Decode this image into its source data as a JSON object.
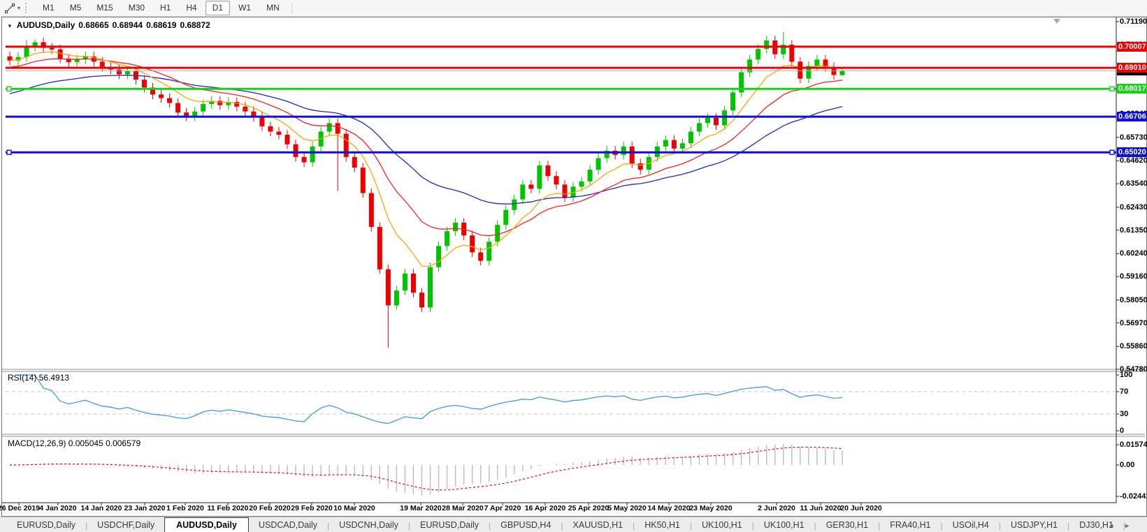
{
  "toolbar": {
    "timeframes": [
      "M1",
      "M5",
      "M15",
      "M30",
      "H1",
      "H4",
      "D1",
      "W1",
      "MN"
    ],
    "active_timeframe": "D1",
    "caret_glyph": "▾"
  },
  "chart_header": {
    "collapse_glyph": "▼",
    "symbol": "AUDUSD,Daily",
    "open": "0.68665",
    "high": "0.68944",
    "low": "0.68619",
    "close": "0.68872"
  },
  "price_axis": {
    "ticks": [
      "0.71190",
      "0.70110",
      "0.69020",
      "0.67920",
      "0.66840",
      "0.65730",
      "0.64620",
      "0.63540",
      "0.62430",
      "0.61350",
      "0.60240",
      "0.59160",
      "0.58050",
      "0.56970",
      "0.55860",
      "0.54780"
    ],
    "badges": [
      {
        "label": "0.70007",
        "value": 0.70007,
        "color": "#f00000",
        "name": "resistance-line-label"
      },
      {
        "label": "0.68872",
        "value": 0.68872,
        "color": "#000000",
        "name": "current-price-label"
      },
      {
        "label": "0.69010",
        "value": 0.6901,
        "color": "#f00000",
        "name": "resistance-line-label"
      },
      {
        "label": "0.68017",
        "value": 0.68017,
        "color": "#17d317",
        "name": "support-line-label"
      },
      {
        "label": "0.66706",
        "value": 0.66706,
        "color": "#0d0de0",
        "name": "support-line-label"
      },
      {
        "label": "0.65020",
        "value": 0.6502,
        "color": "#0d0de0",
        "name": "support-line-label"
      }
    ]
  },
  "rsi": {
    "label": "RSI(14) 56.4913",
    "axis": [
      {
        "label": "100",
        "value": 100
      },
      {
        "label": "70",
        "value": 70
      },
      {
        "label": "30",
        "value": 30
      },
      {
        "label": "0",
        "value": 0
      }
    ],
    "dashed_levels": [
      70,
      30
    ],
    "line_color": "#3d9be9"
  },
  "macd": {
    "label": "MACD(12,26,9) 0.005045 0.006579",
    "axis": [
      {
        "label": "0.015741",
        "value": 0.015741
      },
      {
        "label": "0.00",
        "value": 0
      },
      {
        "label": "-0.024412",
        "value": -0.024412
      }
    ],
    "histogram_color": "#bcbcbc",
    "signal_color": "#f00000"
  },
  "date_axis": [
    "26 Dec 2019",
    "4 Jan 2020",
    "14 Jan 2020",
    "23 Jan 2020",
    "1 Feb 2020",
    "11 Feb 2020",
    "20 Feb 2020",
    "29 Feb 2020",
    "10 Mar 2020",
    "19 Mar 2020",
    "28 Mar 2020",
    "7 Apr 2020",
    "16 Apr 2020",
    "25 Apr 2020",
    "5 May 2020",
    "14 May 2020",
    "23 May 2020",
    "2 Jun 2020",
    "11 Jun 2020",
    "20 Jun 2020"
  ],
  "tabs": {
    "items": [
      "EURUSD,Daily",
      "USDCHF,Daily",
      "AUDUSD,Daily",
      "USDCAD,Daily",
      "USDCNH,Daily",
      "EURUSD,Daily",
      "GBPUSD,H4",
      "XAUUSD,H1",
      "HK50,H1",
      "UK100,H1",
      "UK100,H1",
      "GER30,H1",
      "FRA40,H1",
      "USOil,H4",
      "USDJPY,H1",
      "DJ30,H1"
    ],
    "active_index": 2,
    "scroll_left_glyph": "◄",
    "scroll_right_glyph": "►"
  },
  "chart_data": {
    "type": "candlestick",
    "symbol": "AUDUSD",
    "timeframe": "Daily",
    "price_range": {
      "top": 0.7119,
      "bottom": 0.5478
    },
    "up_color": "#00c400",
    "down_color": "#ee0000",
    "current_price_line_color": "#b4b4b4",
    "ma_colors": [
      "#ffa500",
      "#ff2020",
      "#2424cc"
    ],
    "ma_periods": [
      8,
      17,
      34
    ],
    "ma_seeds": [
      null,
      0.69,
      0.677
    ],
    "open_seed": 0.6955,
    "default_wick": 0.0022,
    "closes": [
      0.6935,
      0.6952,
      0.7,
      0.7022,
      0.6995,
      0.6988,
      0.6945,
      0.6928,
      0.694,
      0.6955,
      0.693,
      0.6905,
      0.6893,
      0.687,
      0.6885,
      0.6845,
      0.6808,
      0.6775,
      0.6758,
      0.6735,
      0.669,
      0.6672,
      0.6695,
      0.673,
      0.6745,
      0.6725,
      0.674,
      0.6718,
      0.6695,
      0.667,
      0.6625,
      0.66,
      0.6585,
      0.654,
      0.648,
      0.6455,
      0.653,
      0.66,
      0.664,
      0.659,
      0.648,
      0.643,
      0.631,
      0.615,
      0.595,
      0.578,
      0.585,
      0.593,
      0.584,
      0.577,
      0.596,
      0.606,
      0.613,
      0.617,
      0.611,
      0.603,
      0.599,
      0.608,
      0.616,
      0.623,
      0.628,
      0.635,
      0.633,
      0.644,
      0.639,
      0.635,
      0.629,
      0.634,
      0.6365,
      0.642,
      0.6475,
      0.651,
      0.649,
      0.653,
      0.645,
      0.642,
      0.648,
      0.653,
      0.656,
      0.652,
      0.6545,
      0.66,
      0.664,
      0.6665,
      0.663,
      0.67,
      0.6785,
      0.688,
      0.694,
      0.699,
      0.703,
      0.6965,
      0.701,
      0.693,
      0.685,
      0.691,
      0.694,
      0.6905,
      0.6867,
      0.68872
    ],
    "wick_overrides": {
      "2": {
        "h": 0.7032
      },
      "3": {
        "h": 0.7035
      },
      "39": {
        "l": 0.632
      },
      "45": {
        "l": 0.558
      },
      "92": {
        "h": 0.707
      },
      "99": {
        "o": 0.68665,
        "h": 0.68944,
        "l": 0.68619
      }
    },
    "hlines": [
      {
        "value": 0.70007,
        "color": "#f00000",
        "width": 3,
        "handles": false,
        "name": "resistance-line-0.70007"
      },
      {
        "value": 0.6901,
        "color": "#f00000",
        "width": 3,
        "handles": false,
        "name": "resistance-line-0.69010"
      },
      {
        "value": 0.68872,
        "color": "#b4b4b4",
        "width": 1,
        "handles": false,
        "name": "current-price-line"
      },
      {
        "value": 0.68017,
        "color": "#17d317",
        "width": 3,
        "handles": true,
        "name": "support-line-0.68017"
      },
      {
        "value": 0.66706,
        "color": "#0d0de0",
        "width": 3,
        "handles": false,
        "name": "support-line-0.66706"
      },
      {
        "value": 0.6502,
        "color": "#0d0de0",
        "width": 3,
        "handles": true,
        "name": "support-line-0.65020"
      }
    ],
    "indicators": {
      "rsi_period": 14,
      "macd": [
        12,
        26,
        9
      ]
    }
  }
}
